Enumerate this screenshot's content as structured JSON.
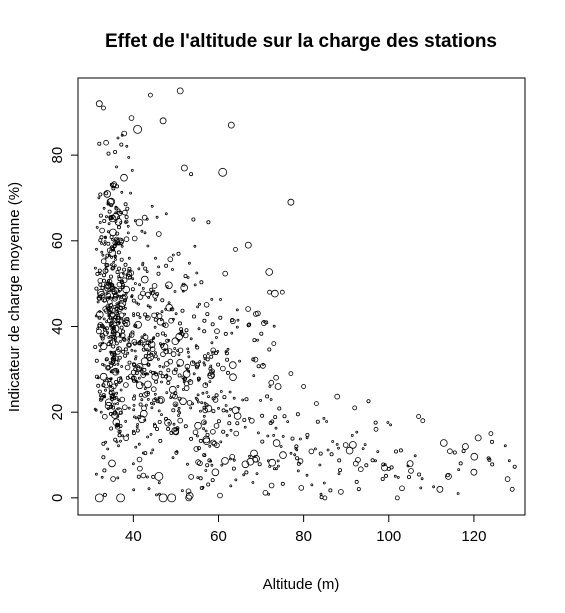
{
  "chart_data": {
    "type": "scatter",
    "title": "Effet de l'altitude sur la charge des stations",
    "xlabel": "Altitude (m)",
    "ylabel": "Indicateur de charge moyenne (%)",
    "xlim": [
      27,
      132
    ],
    "ylim": [
      -4,
      98
    ],
    "xticks": [
      40,
      60,
      80,
      100,
      120
    ],
    "yticks": [
      0,
      20,
      40,
      60,
      80
    ],
    "xtick_labels": [
      "40",
      "60",
      "80",
      "100",
      "120"
    ],
    "ytick_labels": [
      "0",
      "20",
      "40",
      "60",
      "80"
    ],
    "grid": false,
    "legend": "none",
    "marker": "open-circle",
    "marker_size_varies": true,
    "n_points_approx": 1100,
    "density_profile": [
      {
        "x_range": [
          31,
          40
        ],
        "y_mean": 45,
        "y_spread": 22,
        "share": 0.42
      },
      {
        "x_range": [
          40,
          55
        ],
        "y_mean": 32,
        "y_spread": 20,
        "share": 0.3
      },
      {
        "x_range": [
          55,
          75
        ],
        "y_mean": 24,
        "y_spread": 16,
        "share": 0.19
      },
      {
        "x_range": [
          75,
          100
        ],
        "y_mean": 11,
        "y_spread": 7,
        "share": 0.06
      },
      {
        "x_range": [
          100,
          130
        ],
        "y_mean": 8,
        "y_spread": 6,
        "share": 0.03
      }
    ],
    "points": [
      {
        "x": 32,
        "y": 92,
        "r": 3
      },
      {
        "x": 33,
        "y": 91,
        "r": 2
      },
      {
        "x": 44,
        "y": 94,
        "r": 2
      },
      {
        "x": 51,
        "y": 95,
        "r": 3
      },
      {
        "x": 47,
        "y": 88,
        "r": 3
      },
      {
        "x": 63,
        "y": 87,
        "r": 3
      },
      {
        "x": 41,
        "y": 86,
        "r": 4
      },
      {
        "x": 61,
        "y": 76,
        "r": 4
      },
      {
        "x": 52,
        "y": 77,
        "r": 3
      },
      {
        "x": 77,
        "y": 69,
        "r": 3
      },
      {
        "x": 67,
        "y": 59,
        "r": 3
      },
      {
        "x": 64,
        "y": 58,
        "r": 2
      },
      {
        "x": 72,
        "y": 48,
        "r": 2
      },
      {
        "x": 75,
        "y": 48,
        "r": 2
      },
      {
        "x": 73,
        "y": 36,
        "r": 2
      },
      {
        "x": 77,
        "y": 29,
        "r": 2
      },
      {
        "x": 74,
        "y": 26,
        "r": 3
      },
      {
        "x": 80,
        "y": 26,
        "r": 2
      },
      {
        "x": 83,
        "y": 22,
        "r": 2
      },
      {
        "x": 92,
        "y": 21,
        "r": 2
      },
      {
        "x": 97,
        "y": 16,
        "r": 2
      },
      {
        "x": 107,
        "y": 19,
        "r": 2
      },
      {
        "x": 108,
        "y": 18,
        "r": 2
      },
      {
        "x": 121,
        "y": 14,
        "r": 3
      },
      {
        "x": 124,
        "y": 15,
        "r": 2
      },
      {
        "x": 118,
        "y": 12,
        "r": 3
      },
      {
        "x": 114,
        "y": 5,
        "r": 3
      },
      {
        "x": 120,
        "y": 6,
        "r": 3
      },
      {
        "x": 112,
        "y": 2,
        "r": 3
      },
      {
        "x": 129,
        "y": 2,
        "r": 2
      },
      {
        "x": 32,
        "y": 0,
        "r": 4
      },
      {
        "x": 37,
        "y": 0,
        "r": 4
      },
      {
        "x": 47,
        "y": 0,
        "r": 4
      },
      {
        "x": 49,
        "y": 0,
        "r": 4
      },
      {
        "x": 53,
        "y": 0,
        "r": 3
      },
      {
        "x": 85,
        "y": 0,
        "r": 2
      },
      {
        "x": 102,
        "y": 0,
        "r": 2
      },
      {
        "x": 46,
        "y": 5,
        "r": 4
      },
      {
        "x": 105,
        "y": 8,
        "r": 3
      },
      {
        "x": 99,
        "y": 7,
        "r": 3
      }
    ]
  }
}
